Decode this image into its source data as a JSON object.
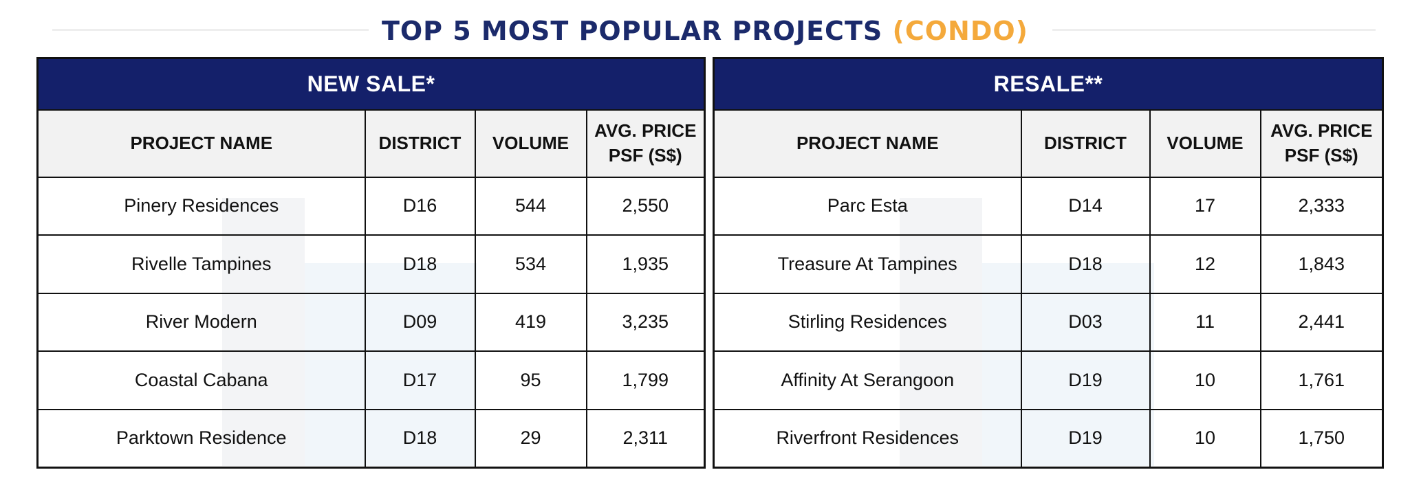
{
  "title": {
    "main": "TOP 5 MOST POPULAR PROJECTS",
    "accent": "(CONDO)"
  },
  "colors": {
    "header_bg": "#14206a",
    "title": "#1b2a6b",
    "accent": "#f4a93b",
    "col_header_bg": "#f2f2f2"
  },
  "new_sale": {
    "heading": "NEW SALE*",
    "columns": [
      "PROJECT NAME",
      "DISTRICT",
      "VOLUME",
      "AVG. PRICE PSF (S$)"
    ],
    "rows": [
      [
        "Pinery Residences",
        "D16",
        "544",
        "2,550"
      ],
      [
        "Rivelle Tampines",
        "D18",
        "534",
        "1,935"
      ],
      [
        "River Modern",
        "D09",
        "419",
        "3,235"
      ],
      [
        "Coastal Cabana",
        "D17",
        "95",
        "1,799"
      ],
      [
        "Parktown Residence",
        "D18",
        "29",
        "2,311"
      ]
    ]
  },
  "resale": {
    "heading": "RESALE**",
    "columns": [
      "PROJECT NAME",
      "DISTRICT",
      "VOLUME",
      "AVG. PRICE PSF (S$)"
    ],
    "rows": [
      [
        "Parc Esta",
        "D14",
        "17",
        "2,333"
      ],
      [
        "Treasure At Tampines",
        "D18",
        "12",
        "1,843"
      ],
      [
        "Stirling Residences",
        "D03",
        "11",
        "2,441"
      ],
      [
        "Affinity At Serangoon",
        "D19",
        "10",
        "1,761"
      ],
      [
        "Riverfront Residences",
        "D19",
        "10",
        "1,750"
      ]
    ]
  }
}
